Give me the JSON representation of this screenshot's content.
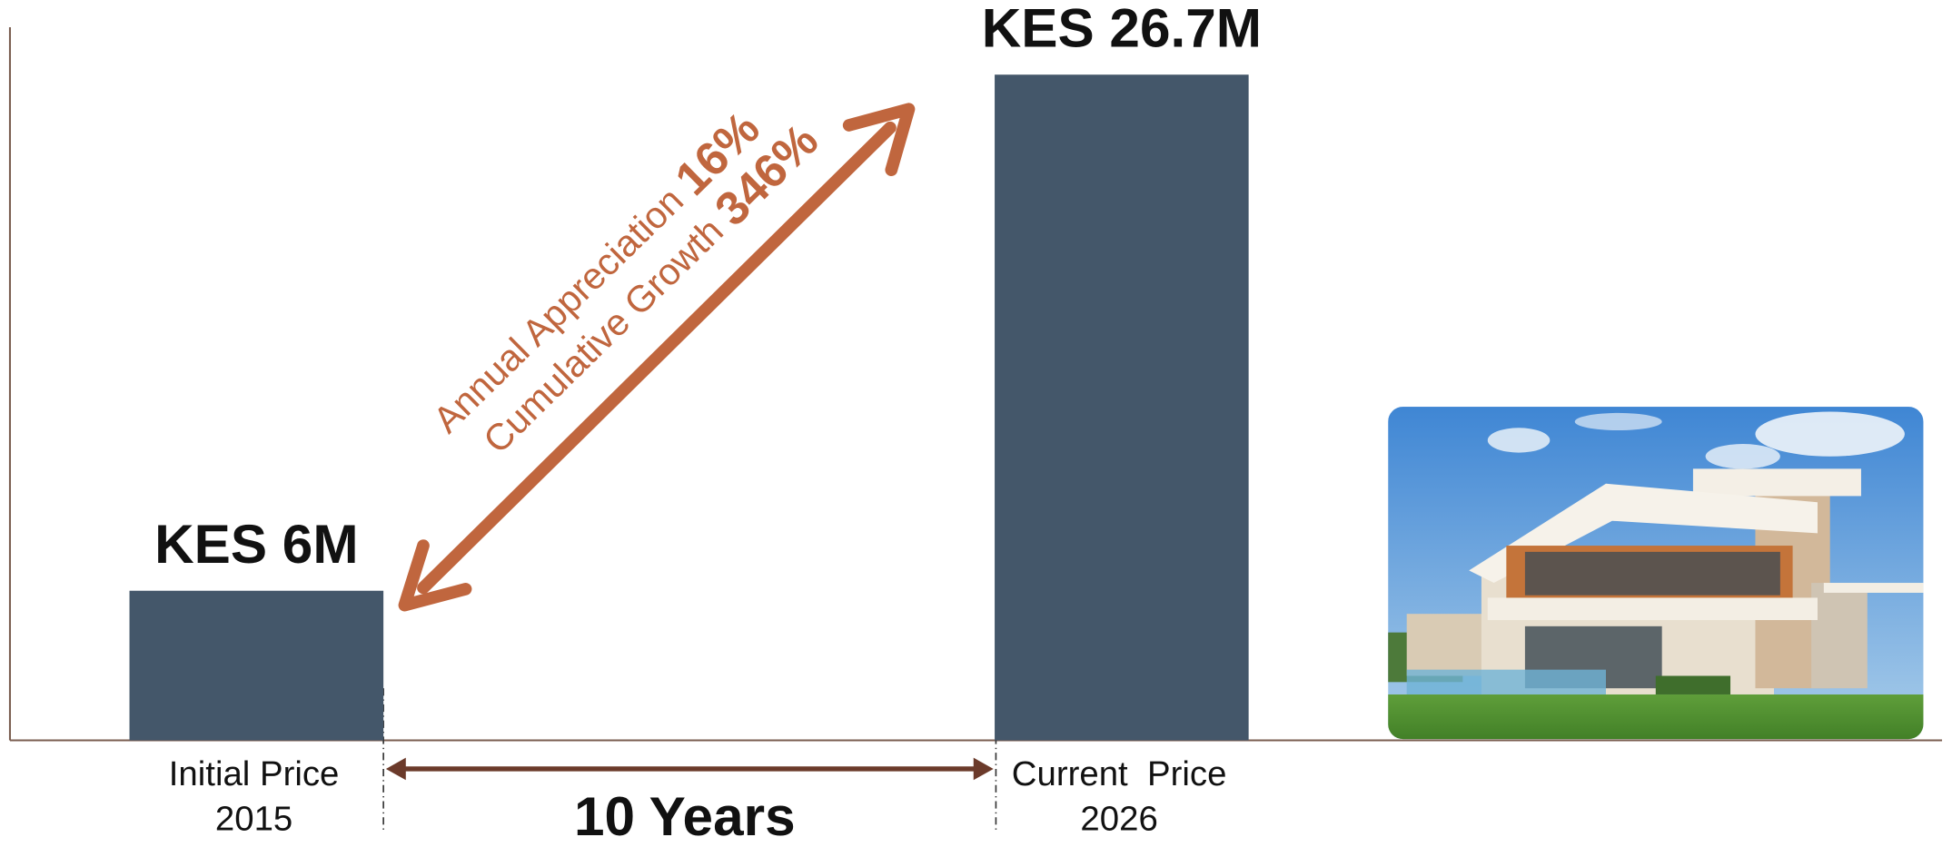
{
  "chart_data": {
    "type": "bar",
    "categories": [
      "Initial Price",
      "Current  Price"
    ],
    "years": [
      "2015",
      "2026"
    ],
    "values": [
      6,
      26.7
    ],
    "value_labels": [
      "KES 6M",
      "KES 26.7M"
    ],
    "color": "#44576a",
    "ylim": [
      0,
      28.6
    ],
    "arrow_labels": [
      {
        "text": "Annual Appreciation",
        "emphasis": "16%"
      },
      {
        "text": "Cumulative Growth",
        "emphasis": "346%"
      }
    ],
    "period_label": "10 Years"
  }
}
